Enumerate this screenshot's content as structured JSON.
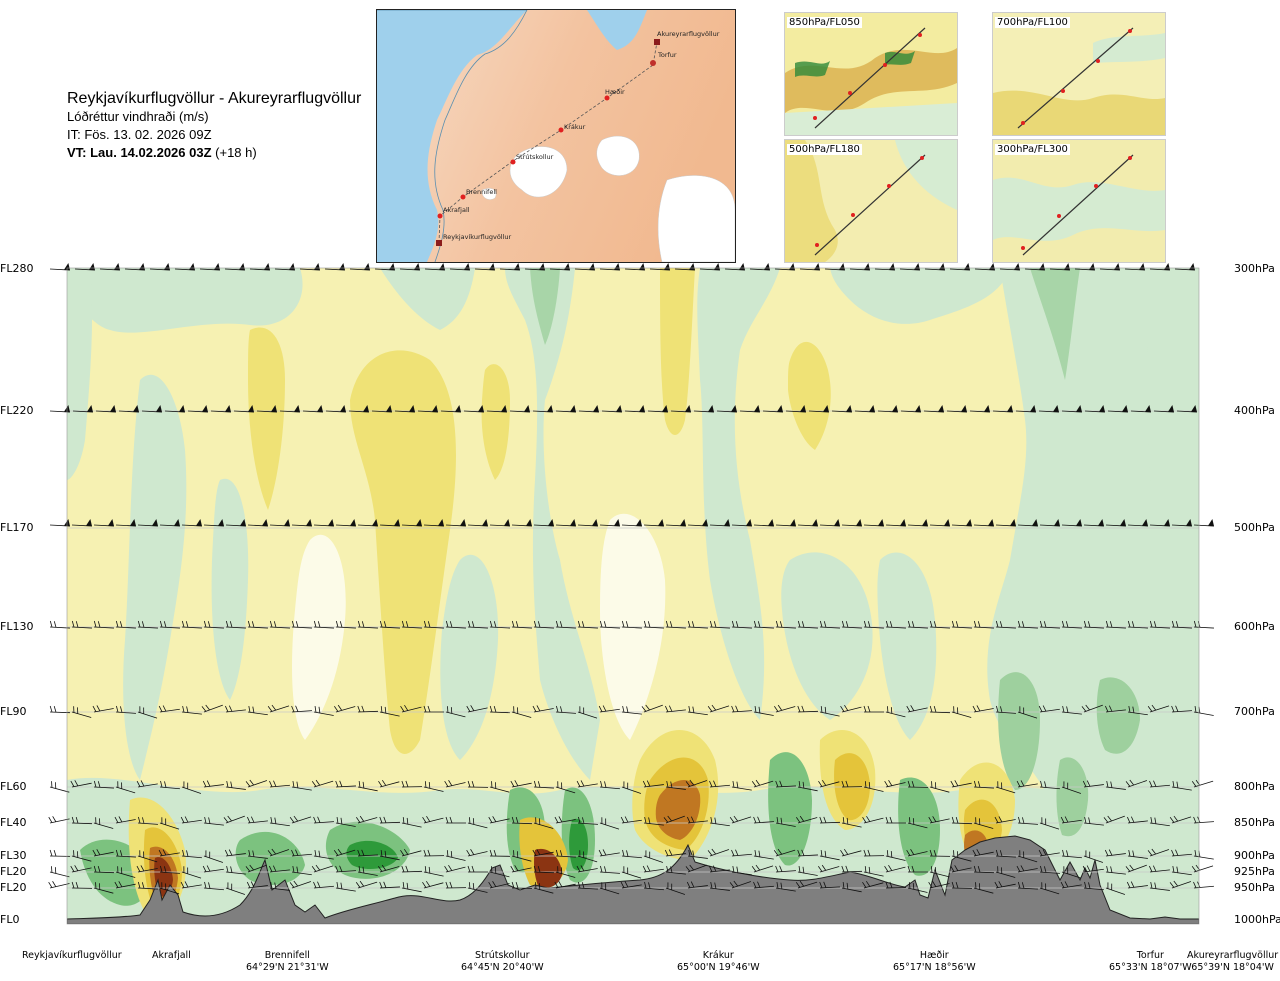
{
  "header": {
    "route": "Reykjavíkurflugvöllur - Akureyrarflugvöllur",
    "variable": "Lóðréttur vindhraði (m/s)",
    "issue_time": "IT: Fös. 13. 02. 2026 09Z",
    "valid_time_bold": "VT: Lau. 14.02.2026 03Z",
    "valid_offset": "(+18 h)"
  },
  "route_map": {
    "waypoints": [
      "Akureyrarflugvöllur",
      "Torfur",
      "Hæðir",
      "Krákur",
      "Strútskollur",
      "Brennifell",
      "Akrafjall",
      "Reykjavíkurflugvöllur"
    ]
  },
  "level_maps": [
    {
      "label": "850hPa/FL050"
    },
    {
      "label": "700hPa/FL100"
    },
    {
      "label": "500hPa/FL180"
    },
    {
      "label": "300hPa/FL300"
    }
  ],
  "chart_data": {
    "type": "heatmap",
    "title": "Lóðréttur vindhraði (m/s)",
    "y_left_labels": [
      "FL280",
      "FL220",
      "FL170",
      "FL130",
      "FL90",
      "FL60",
      "FL40",
      "FL30",
      "FL20",
      "FL20",
      "FL0"
    ],
    "y_right_labels": [
      "300hPa",
      "400hPa",
      "500hPa",
      "600hPa",
      "700hPa",
      "800hPa",
      "850hPa",
      "900hPa",
      "925hPa",
      "950hPa",
      "1000hPa"
    ],
    "pressure_levels_hPa": [
      300,
      400,
      500,
      600,
      700,
      800,
      850,
      900,
      925,
      950,
      1000
    ],
    "x_points": [
      {
        "name": "Reykjavíkurflugvöllur",
        "coord": ""
      },
      {
        "name": "Akrafjall",
        "coord": ""
      },
      {
        "name": "Brennifell",
        "coord": "64°29'N 21°31'W"
      },
      {
        "name": "Strútskollur",
        "coord": "64°45'N 20°40'W"
      },
      {
        "name": "Krákur",
        "coord": "65°00'N 19°46'W"
      },
      {
        "name": "Hæðir",
        "coord": "65°17'N 18°56'W"
      },
      {
        "name": "Torfur",
        "coord": "65°33'N 18°07'W"
      },
      {
        "name": "Akureyrarflugvöllur",
        "coord": "65°39'N 18°04'W"
      }
    ],
    "colors": {
      "strong_down": "#2e9a3a",
      "mod_down": "#7cc27f",
      "weak_down": "#cfe8cf",
      "neutral": "#f6f1b2",
      "weak_up": "#efe276",
      "mod_up": "#e4c43a",
      "strong_up": "#c07722",
      "very_strong_up": "#8b3412",
      "terrain": "#7f7f7f",
      "grid": "#c8c8c8"
    },
    "legend": "none",
    "grid": true
  }
}
